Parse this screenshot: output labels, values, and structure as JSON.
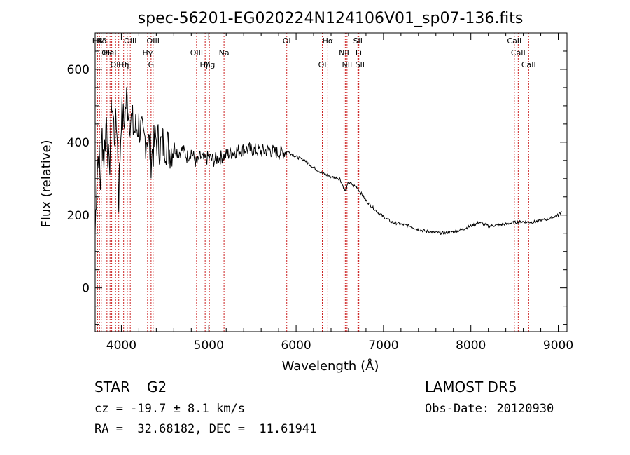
{
  "colors": {
    "spectrum": "#000000",
    "line_marker": "#cc2222",
    "axis": "#000000"
  },
  "chart_data": {
    "type": "line",
    "title": "spec-56201-EG020224N124106V01_sp07-136.fits",
    "xlabel": "Wavelength (Å)",
    "ylabel": "Flux (relative)",
    "xlim": [
      3700,
      9100
    ],
    "ylim": [
      -120,
      700
    ],
    "xticks": [
      4000,
      5000,
      6000,
      7000,
      8000,
      9000
    ],
    "yticks": [
      0,
      200,
      400,
      600
    ],
    "grid": false,
    "series": [
      {
        "x": [
          3700,
          3720,
          3740,
          3760,
          3780,
          3800,
          3830,
          3860,
          3890,
          3920,
          3950,
          3970,
          4000,
          4030,
          4060,
          4100,
          4150,
          4200,
          4250,
          4300,
          4340,
          4400,
          4450,
          4500,
          4550,
          4600,
          4650,
          4700,
          4750,
          4800,
          4861,
          4900,
          4950,
          5000,
          5050,
          5100,
          5200,
          5300,
          5400,
          5500,
          5600,
          5700,
          5800,
          5900,
          6000,
          6100,
          6200,
          6300,
          6400,
          6500,
          6563,
          6600,
          6700,
          6800,
          6900,
          7000,
          7100,
          7200,
          7300,
          7400,
          7500,
          7600,
          7700,
          7800,
          7900,
          8000,
          8100,
          8150,
          8200,
          8300,
          8400,
          8500,
          8600,
          8700,
          8800,
          8900,
          9000,
          9020,
          9040
        ],
        "y": [
          150,
          320,
          380,
          280,
          420,
          360,
          470,
          300,
          520,
          420,
          450,
          250,
          480,
          450,
          520,
          470,
          430,
          450,
          400,
          420,
          360,
          410,
          390,
          400,
          380,
          390,
          370,
          380,
          360,
          375,
          340,
          360,
          350,
          360,
          350,
          355,
          365,
          375,
          380,
          380,
          375,
          378,
          370,
          375,
          360,
          350,
          330,
          315,
          305,
          300,
          265,
          290,
          275,
          240,
          215,
          195,
          180,
          175,
          170,
          160,
          155,
          152,
          150,
          155,
          160,
          170,
          180,
          175,
          170,
          172,
          175,
          180,
          182,
          180,
          185,
          190,
          200,
          205,
          210
        ]
      }
    ],
    "line_labels": [
      {
        "text": "Hβ",
        "row": 1
      },
      {
        "text": "K",
        "row": 1
      },
      {
        "text": "Hδ",
        "row": 1
      },
      {
        "text": "OII",
        "row": 2
      },
      {
        "text": "HeI",
        "row": 2
      },
      {
        "text": "SII",
        "row": 2
      },
      {
        "text": "OII",
        "row": 3
      },
      {
        "text": "Hη",
        "row": 3
      },
      {
        "text": "H",
        "row": 3
      },
      {
        "text": "OIII",
        "row": 1
      },
      {
        "text": "Hγ",
        "row": 2
      },
      {
        "text": "G",
        "row": 3
      },
      {
        "text": "OIII",
        "row": 1
      },
      {
        "text": "OIII",
        "row": 2
      },
      {
        "text": "Hβ",
        "row": 3
      },
      {
        "text": "Mg",
        "row": 3
      },
      {
        "text": "Na",
        "row": 2
      },
      {
        "text": "OI",
        "row": 1
      },
      {
        "text": "OI",
        "row": 3
      },
      {
        "text": "Hα",
        "row": 1
      },
      {
        "text": "NII",
        "row": 2
      },
      {
        "text": "NII",
        "row": 3
      },
      {
        "text": "SII",
        "row": 1
      },
      {
        "text": "Li",
        "row": 2
      },
      {
        "text": "SII",
        "row": 3
      },
      {
        "text": "CaII",
        "row": 1
      },
      {
        "text": "CaII",
        "row": 2
      },
      {
        "text": "CaII",
        "row": 3
      }
    ],
    "marker_wavelengths": [
      3727,
      3750,
      3770,
      3835,
      3870,
      3889,
      3934,
      3970,
      4026,
      4068,
      4102,
      4300,
      4340,
      4363,
      4861,
      4959,
      5007,
      5175,
      5893,
      6300,
      6363,
      6548,
      6563,
      6583,
      6707,
      6716,
      6731,
      8498,
      8542,
      8662
    ]
  },
  "footer": {
    "object_type": "STAR",
    "subclass": "G2",
    "survey": "LAMOST DR5",
    "cz": "cz = -19.7 ± 8.1 km/s",
    "obs_date": "Obs-Date: 20120930",
    "coords": "RA =  32.68182, DEC =  11.61941"
  }
}
